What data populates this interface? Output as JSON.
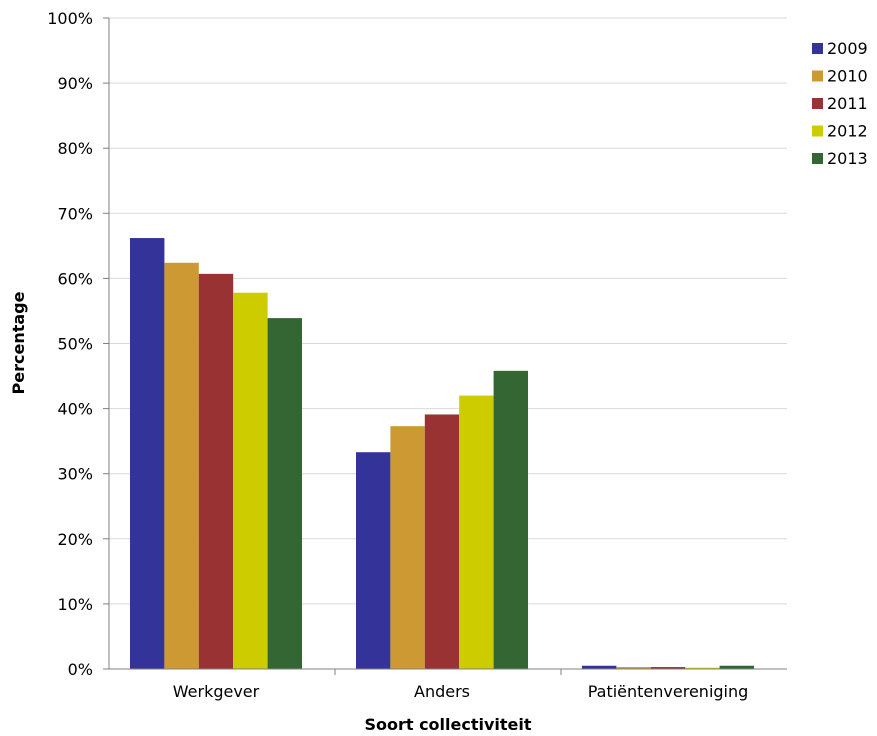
{
  "chart_data": {
    "type": "bar",
    "xlabel": "Soort collectiviteit",
    "ylabel": "Percentage",
    "ylim": [
      0,
      100
    ],
    "yticks": [
      "0%",
      "10%",
      "20%",
      "30%",
      "40%",
      "50%",
      "60%",
      "70%",
      "80%",
      "90%",
      "100%"
    ],
    "grid": true,
    "legend_position": "right",
    "categories": [
      "Werkgever",
      "Anders",
      "Patiëntenvereniging"
    ],
    "series": [
      {
        "name": "2009",
        "color": "#333399",
        "values": [
          66.2,
          33.3,
          0.5
        ]
      },
      {
        "name": "2010",
        "color": "#CC9933",
        "values": [
          62.4,
          37.3,
          0.3
        ]
      },
      {
        "name": "2011",
        "color": "#993333",
        "values": [
          60.7,
          39.1,
          0.3
        ]
      },
      {
        "name": "2012",
        "color": "#CCCC00",
        "values": [
          57.8,
          42.0,
          0.2
        ]
      },
      {
        "name": "2013",
        "color": "#336633",
        "values": [
          53.9,
          45.8,
          0.5
        ]
      }
    ]
  }
}
